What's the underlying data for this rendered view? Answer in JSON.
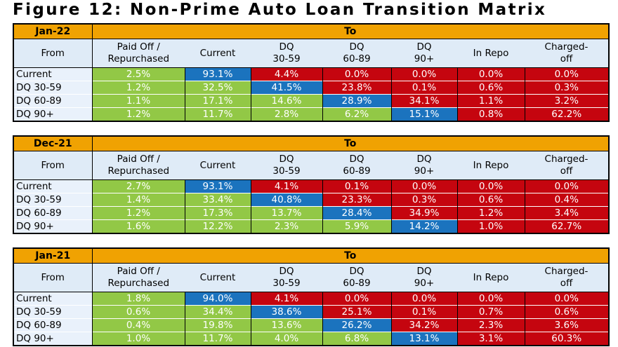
{
  "title": "Figure 12: Non-Prime Auto Loan Transition Matrix",
  "labels": {
    "to": "To",
    "from": "From"
  },
  "palette": {
    "green": "#92C846",
    "blue": "#1B73BE",
    "red": "#C5050F",
    "orange": "#F0A202",
    "header_bg": "#DFEBF7",
    "label_bg": "#E9F1FB",
    "border": "#000000",
    "cell_text": "#FFFFFF"
  },
  "columns": [
    "Paid Off / Repurchased",
    "Current",
    "DQ 30-59",
    "DQ 60-89",
    "DQ 90+",
    "In Repo",
    "Charged-off"
  ],
  "columns_display": [
    "Paid Off /\nRepurchased",
    "Current",
    "DQ\n30-59",
    "DQ\n60-89",
    "DQ\n90+",
    "In Repo",
    "Charged-\noff"
  ],
  "chart_data": [
    {
      "type": "table",
      "period": "Jan-22",
      "unit": "%",
      "columns": [
        "Paid Off / Repurchased",
        "Current",
        "DQ 30-59",
        "DQ 60-89",
        "DQ 90+",
        "In Repo",
        "Charged-off"
      ],
      "rows": [
        {
          "label": "Current",
          "values": [
            2.5,
            93.1,
            4.4,
            0.0,
            0.0,
            0.0,
            0.0
          ],
          "cell_colors": [
            "green",
            "blue",
            "red",
            "red",
            "red",
            "red",
            "red"
          ]
        },
        {
          "label": "DQ 30-59",
          "values": [
            1.2,
            32.5,
            41.5,
            23.8,
            0.1,
            0.6,
            0.3
          ],
          "cell_colors": [
            "green",
            "green",
            "blue",
            "red",
            "red",
            "red",
            "red"
          ]
        },
        {
          "label": "DQ 60-89",
          "values": [
            1.1,
            17.1,
            14.6,
            28.9,
            34.1,
            1.1,
            3.2
          ],
          "cell_colors": [
            "green",
            "green",
            "green",
            "blue",
            "red",
            "red",
            "red"
          ]
        },
        {
          "label": "DQ 90+",
          "values": [
            1.2,
            11.7,
            2.8,
            6.2,
            15.1,
            0.8,
            62.2
          ],
          "cell_colors": [
            "green",
            "green",
            "green",
            "green",
            "blue",
            "red",
            "red"
          ]
        }
      ]
    },
    {
      "type": "table",
      "period": "Dec-21",
      "unit": "%",
      "columns": [
        "Paid Off / Repurchased",
        "Current",
        "DQ 30-59",
        "DQ 60-89",
        "DQ 90+",
        "In Repo",
        "Charged-off"
      ],
      "rows": [
        {
          "label": "Current",
          "values": [
            2.7,
            93.1,
            4.1,
            0.1,
            0.0,
            0.0,
            0.0
          ],
          "cell_colors": [
            "green",
            "blue",
            "red",
            "red",
            "red",
            "red",
            "red"
          ]
        },
        {
          "label": "DQ 30-59",
          "values": [
            1.4,
            33.4,
            40.8,
            23.3,
            0.3,
            0.6,
            0.4
          ],
          "cell_colors": [
            "green",
            "green",
            "blue",
            "red",
            "red",
            "red",
            "red"
          ]
        },
        {
          "label": "DQ 60-89",
          "values": [
            1.2,
            17.3,
            13.7,
            28.4,
            34.9,
            1.2,
            3.4
          ],
          "cell_colors": [
            "green",
            "green",
            "green",
            "blue",
            "red",
            "red",
            "red"
          ]
        },
        {
          "label": "DQ 90+",
          "values": [
            1.6,
            12.2,
            2.3,
            5.9,
            14.2,
            1.0,
            62.7
          ],
          "cell_colors": [
            "green",
            "green",
            "green",
            "green",
            "blue",
            "red",
            "red"
          ]
        }
      ]
    },
    {
      "type": "table",
      "period": "Jan-21",
      "unit": "%",
      "columns": [
        "Paid Off / Repurchased",
        "Current",
        "DQ 30-59",
        "DQ 60-89",
        "DQ 90+",
        "In Repo",
        "Charged-off"
      ],
      "rows": [
        {
          "label": "Current",
          "values": [
            1.8,
            94.0,
            4.1,
            0.0,
            0.0,
            0.0,
            0.0
          ],
          "cell_colors": [
            "green",
            "blue",
            "red",
            "red",
            "red",
            "red",
            "red"
          ]
        },
        {
          "label": "DQ 30-59",
          "values": [
            0.6,
            34.4,
            38.6,
            25.1,
            0.1,
            0.7,
            0.6
          ],
          "cell_colors": [
            "green",
            "green",
            "blue",
            "red",
            "red",
            "red",
            "red"
          ]
        },
        {
          "label": "DQ 60-89",
          "values": [
            0.4,
            19.8,
            13.6,
            26.2,
            34.2,
            2.3,
            3.6
          ],
          "cell_colors": [
            "green",
            "green",
            "green",
            "blue",
            "red",
            "red",
            "red"
          ]
        },
        {
          "label": "DQ 90+",
          "values": [
            1.0,
            11.7,
            4.0,
            6.8,
            13.1,
            3.1,
            60.3
          ],
          "cell_colors": [
            "green",
            "green",
            "green",
            "green",
            "blue",
            "red",
            "red"
          ]
        }
      ]
    }
  ]
}
